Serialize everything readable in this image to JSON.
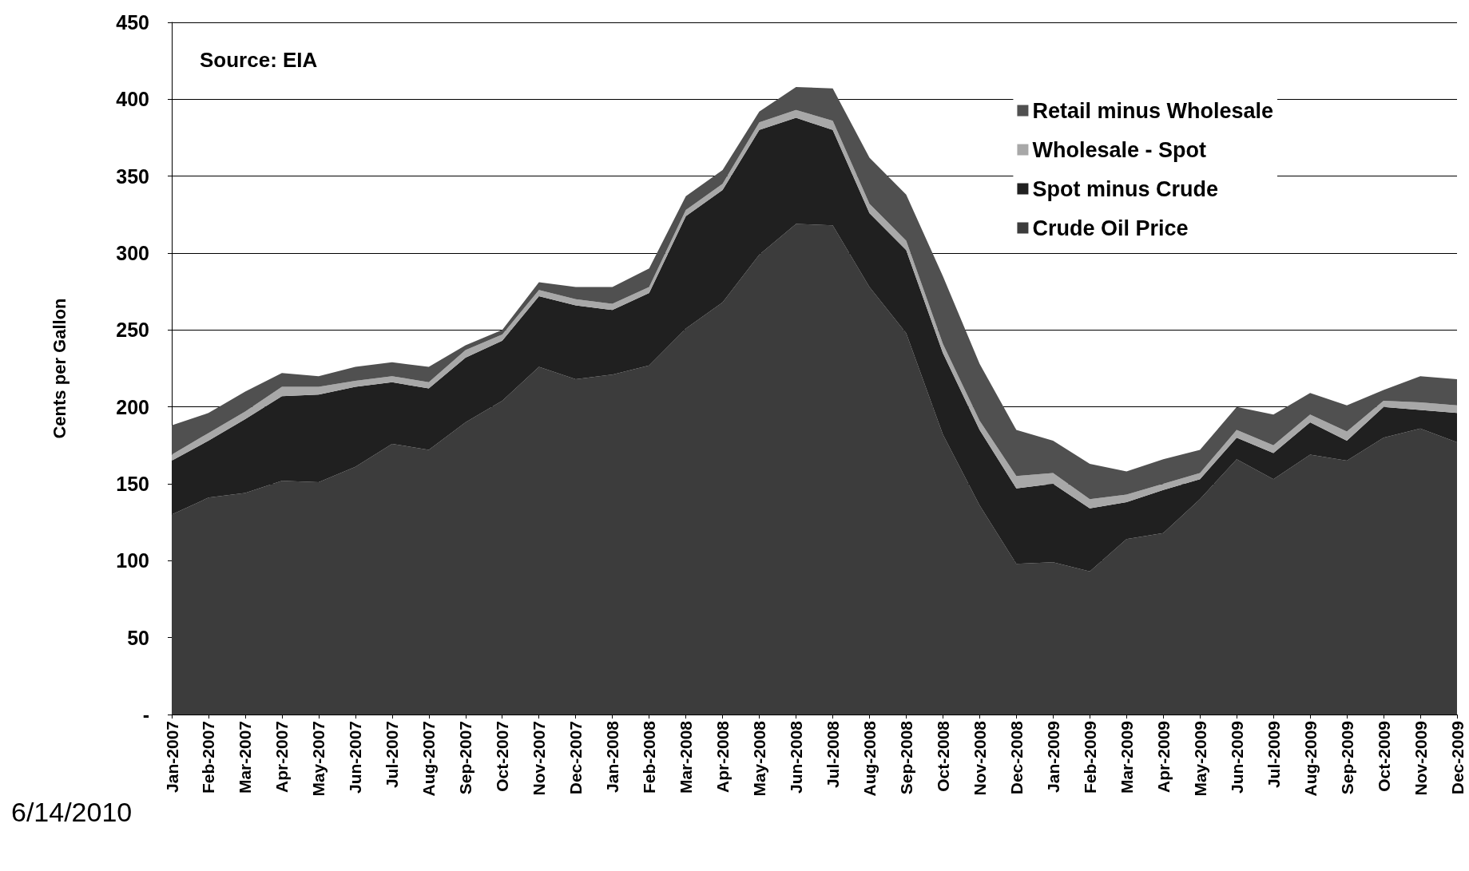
{
  "chart_data": {
    "type": "area",
    "stacked": true,
    "ylabel": "Cents per Gallon",
    "categories": [
      "Jan-2007",
      "Feb-2007",
      "Mar-2007",
      "Apr-2007",
      "May-2007",
      "Jun-2007",
      "Jul-2007",
      "Aug-2007",
      "Sep-2007",
      "Oct-2007",
      "Nov-2007",
      "Dec-2007",
      "Jan-2008",
      "Feb-2008",
      "Mar-2008",
      "Apr-2008",
      "May-2008",
      "Jun-2008",
      "Jul-2008",
      "Aug-2008",
      "Sep-2008",
      "Oct-2008",
      "Nov-2008",
      "Dec-2008",
      "Jan-2009",
      "Feb-2009",
      "Mar-2009",
      "Apr-2009",
      "May-2009",
      "Jun-2009",
      "Jul-2009",
      "Aug-2009",
      "Sep-2009",
      "Oct-2009",
      "Nov-2009",
      "Dec-2009"
    ],
    "series": [
      {
        "name": "Crude Oil Price",
        "color": "#3c3c3c",
        "values": [
          130,
          141,
          144,
          152,
          151,
          161,
          176,
          172,
          190,
          204,
          226,
          218,
          221,
          227,
          251,
          268,
          299,
          319,
          318,
          278,
          248,
          182,
          136,
          98,
          99,
          93,
          114,
          118,
          140,
          166,
          153,
          169,
          165,
          180,
          186,
          177
        ]
      },
      {
        "name": "Spot minus Crude",
        "color": "#202020",
        "values": [
          35,
          37,
          48,
          55,
          57,
          52,
          40,
          40,
          42,
          39,
          46,
          48,
          42,
          47,
          73,
          73,
          81,
          69,
          62,
          48,
          54,
          53,
          49,
          49,
          51,
          41,
          24,
          28,
          13,
          14,
          17,
          21,
          13,
          20,
          12,
          19
        ]
      },
      {
        "name": "Wholesale - Spot",
        "color": "#a8a8a8",
        "values": [
          4,
          5,
          5,
          6,
          5,
          4,
          4,
          4,
          5,
          4,
          4,
          4,
          4,
          4,
          4,
          4,
          5,
          5,
          6,
          6,
          6,
          6,
          6,
          8,
          7,
          6,
          5,
          4,
          4,
          5,
          5,
          5,
          6,
          4,
          5,
          5
        ]
      },
      {
        "name": "Retail minus Wholesale",
        "color": "#505050",
        "values": [
          19,
          13,
          13,
          9,
          7,
          9,
          9,
          10,
          3,
          3,
          5,
          8,
          11,
          12,
          9,
          9,
          7,
          15,
          21,
          30,
          30,
          44,
          37,
          30,
          21,
          23,
          15,
          16,
          15,
          15,
          20,
          14,
          17,
          7,
          17,
          17
        ]
      }
    ],
    "ylim": [
      0,
      450
    ],
    "yticks": [
      {
        "value": 0,
        "label": "-"
      },
      50,
      100,
      150,
      200,
      250,
      300,
      350,
      400,
      450
    ],
    "grid": "y",
    "legend": "top right",
    "annotations": [
      "Source: EIA",
      "6/14/2010"
    ]
  }
}
